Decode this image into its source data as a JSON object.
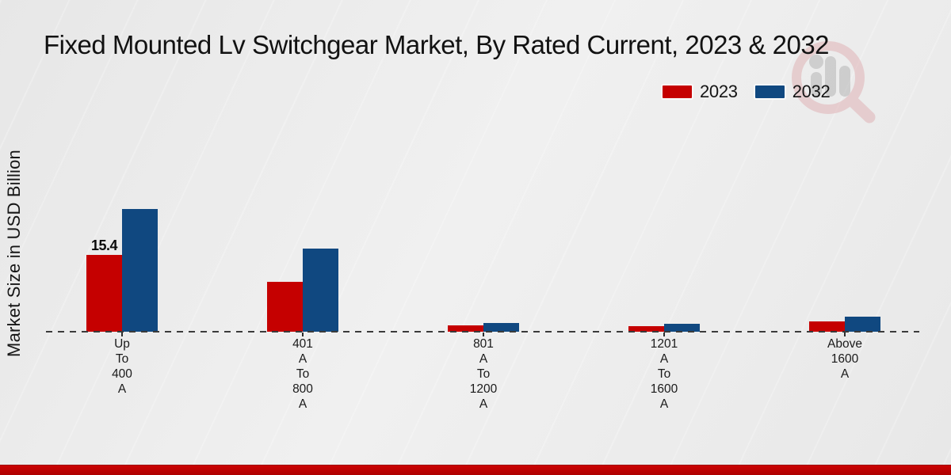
{
  "title": "Fixed Mounted Lv Switchgear Market, By Rated Current, 2023 & 2032",
  "ylabel": "Market Size in USD Billion",
  "colors": {
    "series_2023": "#c50000",
    "series_2032": "#104880",
    "footer_band": "#c00000"
  },
  "watermark_icon": "magnifier-analytics-logo",
  "chart_data": {
    "type": "bar",
    "title": "Fixed Mounted Lv Switchgear Market, By Rated Current, 2023 & 2032",
    "xlabel": "",
    "ylabel": "Market Size in USD Billion",
    "categories": [
      "Up To 400 A",
      "401 A To 800 A",
      "801 A To 1200 A",
      "1201 A To 1600 A",
      "Above 1600 A"
    ],
    "categories_multiline": [
      [
        "Up",
        "To",
        "400",
        "A"
      ],
      [
        "401",
        "A",
        "To",
        "800",
        "A"
      ],
      [
        "801",
        "A",
        "To",
        "1200",
        "A"
      ],
      [
        "1201",
        "A",
        "To",
        "1600",
        "A"
      ],
      [
        "Above",
        "1600",
        "A"
      ]
    ],
    "series": [
      {
        "name": "2023",
        "color": "#c50000",
        "values": [
          15.4,
          10.0,
          1.2,
          1.1,
          2.1
        ]
      },
      {
        "name": "2032",
        "color": "#104880",
        "values": [
          24.6,
          16.7,
          1.7,
          1.6,
          3.0
        ]
      }
    ],
    "data_labels": [
      {
        "series_index": 0,
        "category_index": 0,
        "text": "15.4"
      }
    ],
    "ylim": [
      0,
      26
    ],
    "y_axis_ticks_visible": false,
    "grid": false,
    "baseline_style": "dashed",
    "legend_position": "top-right"
  }
}
